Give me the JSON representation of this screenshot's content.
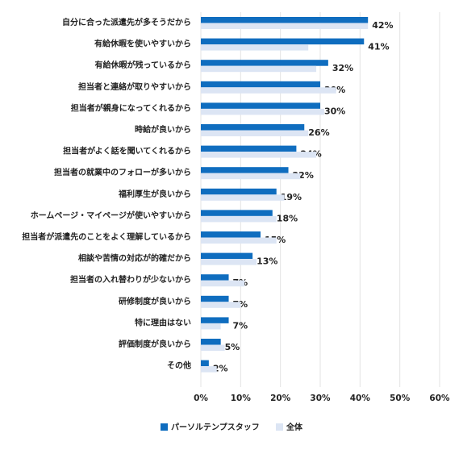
{
  "chart_data": {
    "type": "hbar",
    "categories": [
      "自分に合った派遣先が多そうだから",
      "有給休暇を使いやすいから",
      "有給休暇が残っているから",
      "担当者と連絡が取りやすいから",
      "担当者が親身になってくれるから",
      "時給が良いから",
      "担当者がよく話を聞いてくれるから",
      "担当者の就業中のフォローが多いから",
      "福利厚生が良いから",
      "ホームページ・マイページが使いやすいから",
      "担当者が派遣先のことをよく理解しているから",
      "相談や苦情の対応が的確だから",
      "担当者の入れ替わりが少ないから",
      "研修制度が良いから",
      "特に理由はない",
      "評価制度が良いから",
      "その他"
    ],
    "series": [
      {
        "name": "パーソルテンプスタッフ",
        "color": "#0f6dbf",
        "values": [
          42,
          41,
          32,
          30,
          30,
          26,
          24,
          22,
          19,
          18,
          15,
          13,
          7,
          7,
          7,
          5,
          2
        ],
        "value_labels": [
          "42%",
          "41%",
          "32%",
          "30%",
          "30%",
          "26%",
          "24%",
          "22%",
          "19%",
          "18%",
          "15%",
          "13%",
          "7%",
          "7%",
          "7%",
          "5%",
          "2%"
        ]
      },
      {
        "name": "全体",
        "color": "#dce5f4",
        "values": [
          42,
          27,
          29,
          34,
          31,
          27,
          29,
          25,
          21,
          19,
          19,
          14,
          11,
          10,
          5,
          6,
          4
        ]
      }
    ],
    "xlim": [
      0,
      60
    ],
    "xticks": [
      {
        "value": 0,
        "label": "0%"
      },
      {
        "value": 10,
        "label": "10%"
      },
      {
        "value": 20,
        "label": "20%"
      },
      {
        "value": 30,
        "label": "30%"
      },
      {
        "value": 40,
        "label": "40%"
      },
      {
        "value": 50,
        "label": "50%"
      },
      {
        "value": 60,
        "label": "60%"
      }
    ],
    "grid": true
  }
}
